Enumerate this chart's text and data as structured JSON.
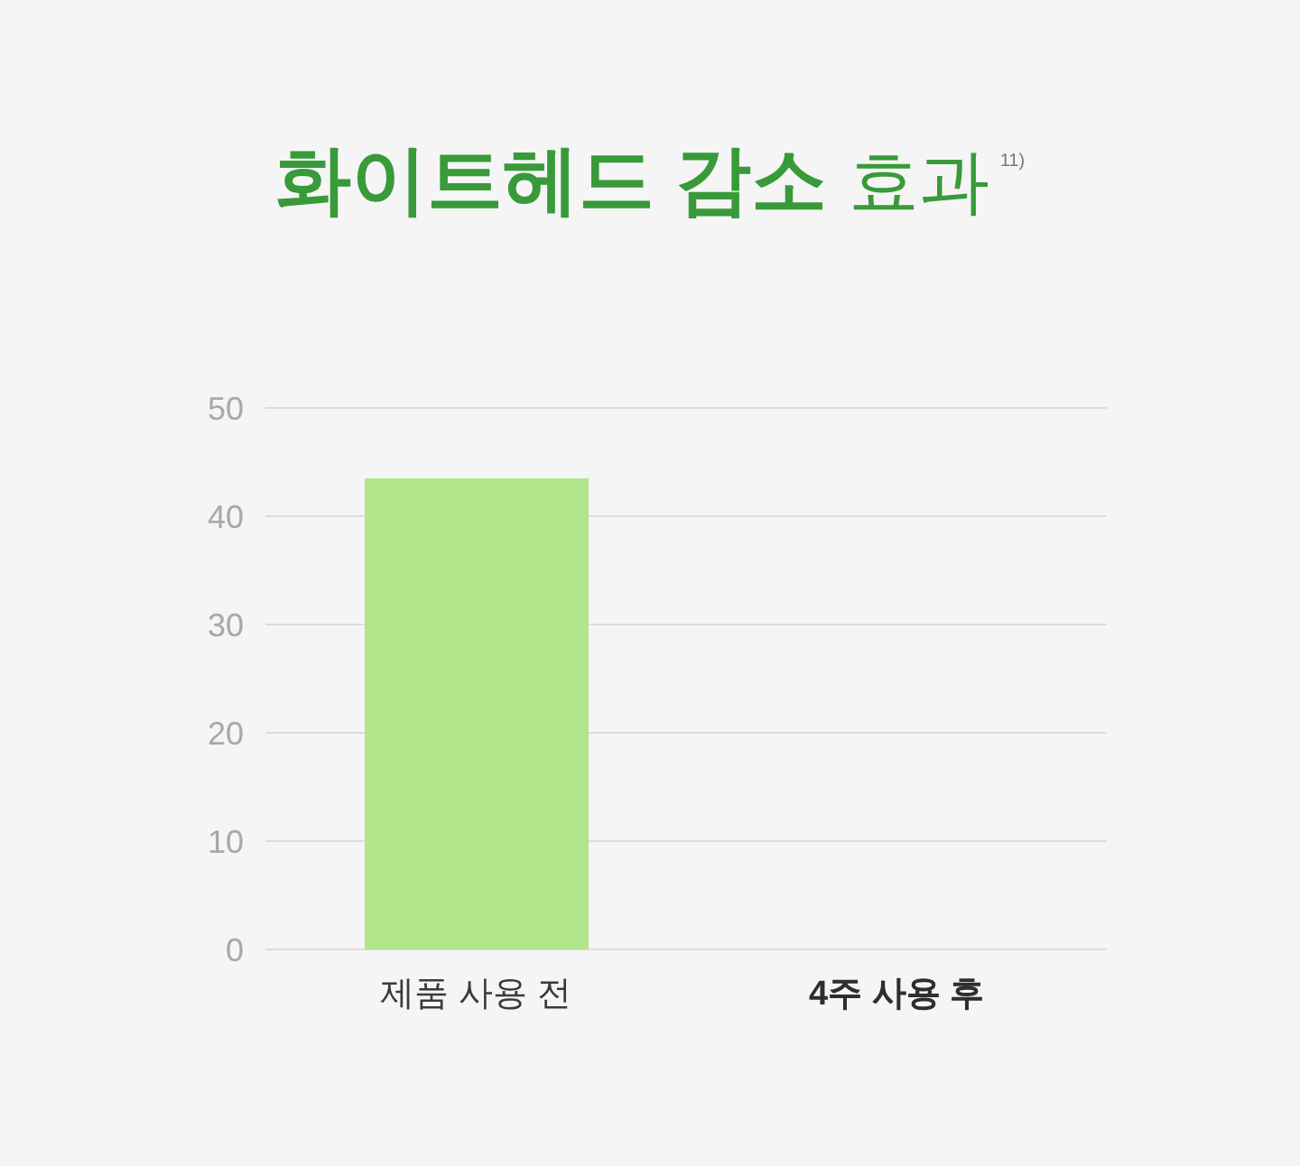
{
  "chart_data": {
    "type": "bar",
    "title": "화이트헤드 감소 효과$^{11)}$",
    "categories": [
      "제품 사용 전",
      "4주 사용 후"
    ],
    "values": [
      43.5,
      null
    ],
    "color": "#b2e58c",
    "ylim": [
      0,
      50
    ],
    "yticks": [
      0,
      10,
      20,
      30,
      40,
      50
    ],
    "grid": "y"
  }
}
